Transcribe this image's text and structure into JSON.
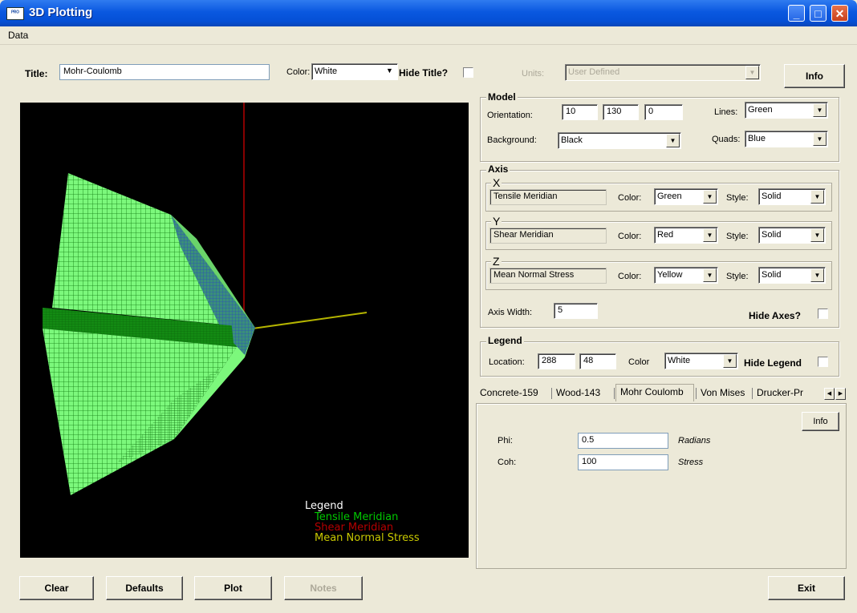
{
  "window": {
    "title": "3D Plotting",
    "icon": "app-icon"
  },
  "menu": {
    "items": [
      "Data"
    ]
  },
  "title_row": {
    "title_label": "Title:",
    "title_value": "Mohr-Coulomb",
    "color_label": "Color:",
    "color_value": "White",
    "hide_title_label": "Hide Title?",
    "hide_title_checked": false,
    "units_label": "Units:",
    "units_value": "User Defined",
    "info_button": "Info"
  },
  "model": {
    "group_label": "Model",
    "orientation_label": "Orientation:",
    "orientation": [
      "10",
      "130",
      "0"
    ],
    "lines_label": "Lines:",
    "lines_value": "Green",
    "background_label": "Background:",
    "background_value": "Black",
    "quads_label": "Quads:",
    "quads_value": "Blue"
  },
  "axis": {
    "group_label": "Axis",
    "axes": [
      {
        "letter": "X",
        "name": "Tensile Meridian",
        "color_label": "Color:",
        "color": "Green",
        "style_label": "Style:",
        "style": "Solid"
      },
      {
        "letter": "Y",
        "name": "Shear Meridian",
        "color_label": "Color:",
        "color": "Red",
        "style_label": "Style:",
        "style": "Solid"
      },
      {
        "letter": "Z",
        "name": "Mean Normal Stress",
        "color_label": "Color:",
        "color": "Yellow",
        "style_label": "Style:",
        "style": "Solid"
      }
    ],
    "width_label": "Axis Width:",
    "width_value": "5",
    "hide_axes_label": "Hide Axes?",
    "hide_axes_checked": false
  },
  "legend_settings": {
    "group_label": "Legend",
    "location_label": "Location:",
    "location": [
      "288",
      "48"
    ],
    "color_label": "Color",
    "color_value": "White",
    "hide_label": "Hide Legend",
    "hide_checked": false
  },
  "tabs": {
    "items": [
      "Concrete-159",
      "Wood-143",
      "Mohr Coulomb",
      "Von Mises",
      "Drucker-Pr"
    ],
    "selected": "Mohr Coulomb",
    "info_button": "Info",
    "params": [
      {
        "label": "Phi:",
        "value": "0.5",
        "unit": "Radians"
      },
      {
        "label": "Coh:",
        "value": "100",
        "unit": "Stress"
      }
    ]
  },
  "plot": {
    "legend_title": "Legend",
    "legend_entries": [
      {
        "text": "Tensile Meridian",
        "color": "#00c800"
      },
      {
        "text": "Shear Meridian",
        "color": "#b40000"
      },
      {
        "text": "Mean Normal Stress",
        "color": "#c8c800"
      }
    ],
    "mesh_color": "#7cf87c",
    "grid_color": "#1a9a1a"
  },
  "buttons": {
    "clear": "Clear",
    "defaults": "Defaults",
    "plot": "Plot",
    "notes": "Notes",
    "exit": "Exit"
  }
}
